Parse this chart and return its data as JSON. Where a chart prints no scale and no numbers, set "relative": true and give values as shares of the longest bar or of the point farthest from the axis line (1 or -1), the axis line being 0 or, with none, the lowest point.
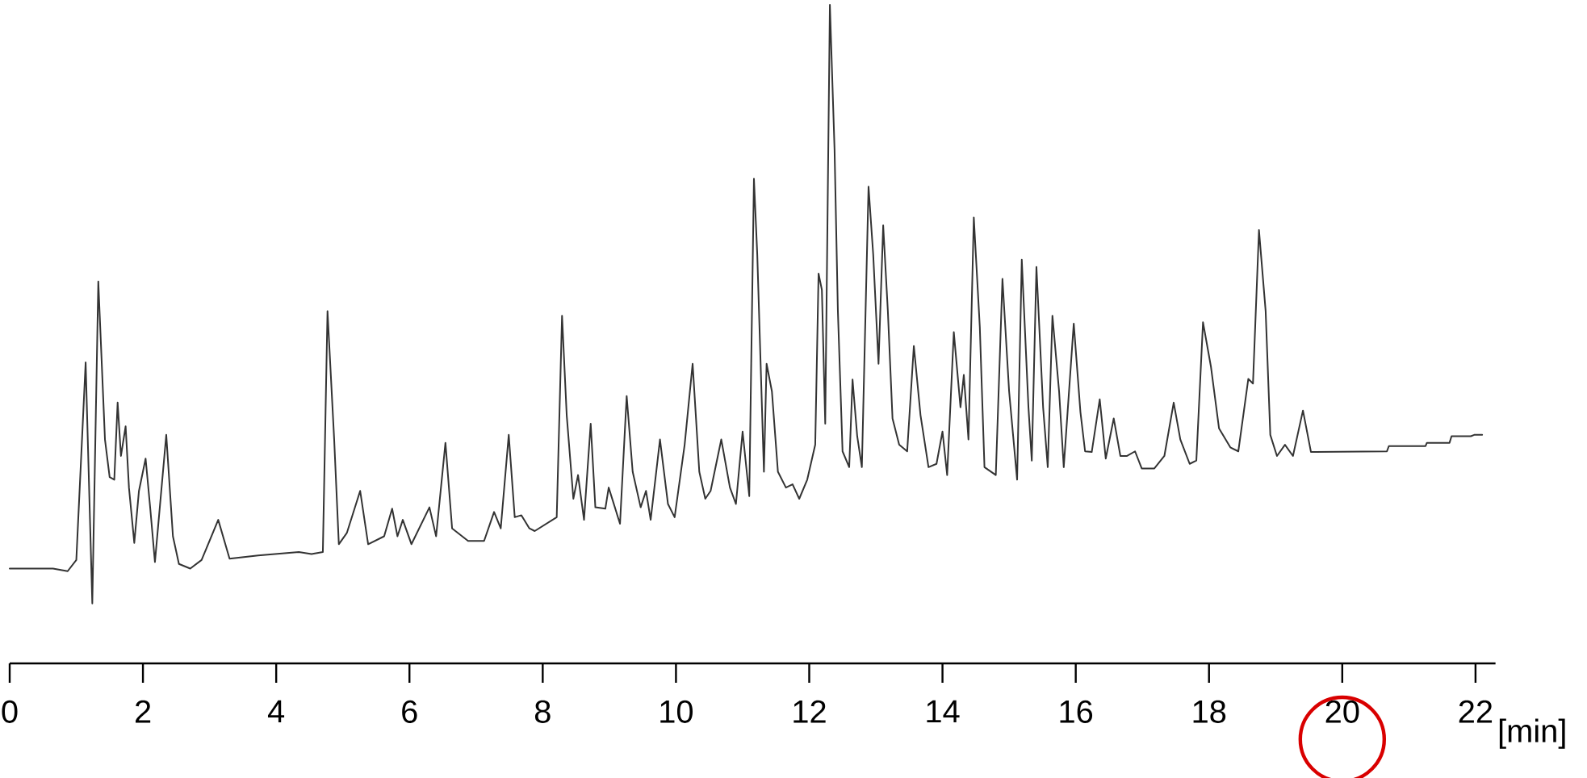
{
  "chart_data": {
    "type": "line",
    "relative": true,
    "xlabel": "[min]",
    "xlim": [
      0,
      22.3
    ],
    "xticks": [
      0,
      2,
      4,
      6,
      8,
      10,
      12,
      14,
      16,
      18,
      20,
      22
    ],
    "grid": false,
    "marker": "none",
    "line_style": "solid",
    "series": [
      {
        "color": "#333333",
        "x": [
          0,
          0.65,
          0.87,
          1.0,
          1.14,
          1.24,
          1.33,
          1.43,
          1.5,
          1.57,
          1.62,
          1.67,
          1.74,
          1.79,
          1.87,
          1.94,
          2.04,
          2.11,
          2.18,
          2.35,
          2.45,
          2.54,
          2.71,
          2.88,
          3.13,
          3.3,
          3.73,
          4.34,
          4.53,
          4.7,
          4.77,
          4.87,
          4.94,
          5.06,
          5.26,
          5.38,
          5.62,
          5.74,
          5.82,
          5.9,
          6.03,
          6.3,
          6.4,
          6.54,
          6.64,
          6.88,
          7.12,
          7.27,
          7.37,
          7.49,
          7.58,
          7.68,
          7.8,
          7.88,
          8.21,
          8.29,
          8.36,
          8.46,
          8.53,
          8.62,
          8.72,
          8.79,
          8.94,
          8.99,
          9.16,
          9.26,
          9.35,
          9.47,
          9.55,
          9.62,
          9.76,
          9.88,
          9.98,
          10.13,
          10.25,
          10.35,
          10.44,
          10.52,
          10.68,
          10.81,
          10.9,
          11.0,
          11.1,
          11.17,
          11.22,
          11.32,
          11.36,
          11.44,
          11.53,
          11.65,
          11.75,
          11.85,
          11.97,
          12.09,
          12.14,
          12.19,
          12.24,
          12.31,
          12.38,
          12.43,
          12.5,
          12.6,
          12.65,
          12.72,
          12.79,
          12.89,
          12.96,
          13.04,
          13.11,
          13.18,
          13.25,
          13.35,
          13.47,
          13.57,
          13.67,
          13.79,
          13.91,
          14.0,
          14.07,
          14.17,
          14.27,
          14.32,
          14.39,
          14.47,
          14.56,
          14.63,
          14.8,
          14.9,
          15.0,
          15.12,
          15.19,
          15.29,
          15.34,
          15.41,
          15.51,
          15.58,
          15.65,
          15.75,
          15.82,
          15.97,
          16.07,
          16.14,
          16.24,
          16.36,
          16.45,
          16.57,
          16.67,
          16.77,
          16.89,
          16.99,
          17.18,
          17.33,
          17.47,
          17.57,
          17.71,
          17.81,
          17.91,
          18.03,
          18.15,
          18.32,
          18.44,
          18.59,
          18.66,
          18.75,
          18.85,
          18.92,
          19.02,
          19.14,
          19.26,
          19.41,
          19.53,
          19.6,
          20.67,
          20.7,
          21.25,
          21.27,
          21.61,
          21.64,
          21.93,
          21.98,
          22.1
        ],
        "values": [
          0.144,
          0.144,
          0.14,
          0.157,
          0.457,
          0.091,
          0.58,
          0.34,
          0.283,
          0.279,
          0.396,
          0.315,
          0.36,
          0.267,
          0.183,
          0.262,
          0.311,
          0.235,
          0.154,
          0.347,
          0.193,
          0.151,
          0.144,
          0.157,
          0.218,
          0.159,
          0.164,
          0.169,
          0.166,
          0.169,
          0.535,
          0.34,
          0.181,
          0.198,
          0.262,
          0.181,
          0.193,
          0.235,
          0.193,
          0.218,
          0.181,
          0.237,
          0.193,
          0.335,
          0.205,
          0.186,
          0.186,
          0.23,
          0.205,
          0.347,
          0.222,
          0.225,
          0.205,
          0.201,
          0.222,
          0.528,
          0.377,
          0.25,
          0.286,
          0.218,
          0.364,
          0.237,
          0.235,
          0.267,
          0.212,
          0.406,
          0.291,
          0.237,
          0.262,
          0.218,
          0.34,
          0.242,
          0.222,
          0.332,
          0.455,
          0.291,
          0.25,
          0.262,
          0.34,
          0.267,
          0.242,
          0.352,
          0.254,
          0.736,
          0.621,
          0.291,
          0.455,
          0.413,
          0.291,
          0.267,
          0.272,
          0.25,
          0.279,
          0.332,
          0.592,
          0.567,
          0.364,
          1,
          0.78,
          0.535,
          0.322,
          0.298,
          0.431,
          0.345,
          0.298,
          0.724,
          0.621,
          0.455,
          0.665,
          0.535,
          0.372,
          0.332,
          0.322,
          0.482,
          0.377,
          0.298,
          0.303,
          0.352,
          0.286,
          0.503,
          0.389,
          0.438,
          0.34,
          0.677,
          0.511,
          0.298,
          0.286,
          0.584,
          0.413,
          0.279,
          0.613,
          0.389,
          0.308,
          0.602,
          0.389,
          0.298,
          0.528,
          0.413,
          0.298,
          0.516,
          0.382,
          0.322,
          0.321,
          0.401,
          0.311,
          0.372,
          0.315,
          0.315,
          0.322,
          0.296,
          0.296,
          0.315,
          0.396,
          0.34,
          0.303,
          0.308,
          0.518,
          0.45,
          0.357,
          0.328,
          0.322,
          0.432,
          0.425,
          0.658,
          0.535,
          0.347,
          0.315,
          0.332,
          0.315,
          0.384,
          0.321,
          0.321,
          0.322,
          0.33,
          0.33,
          0.335,
          0.335,
          0.345,
          0.345,
          0.347,
          0.347
        ]
      }
    ]
  }
}
